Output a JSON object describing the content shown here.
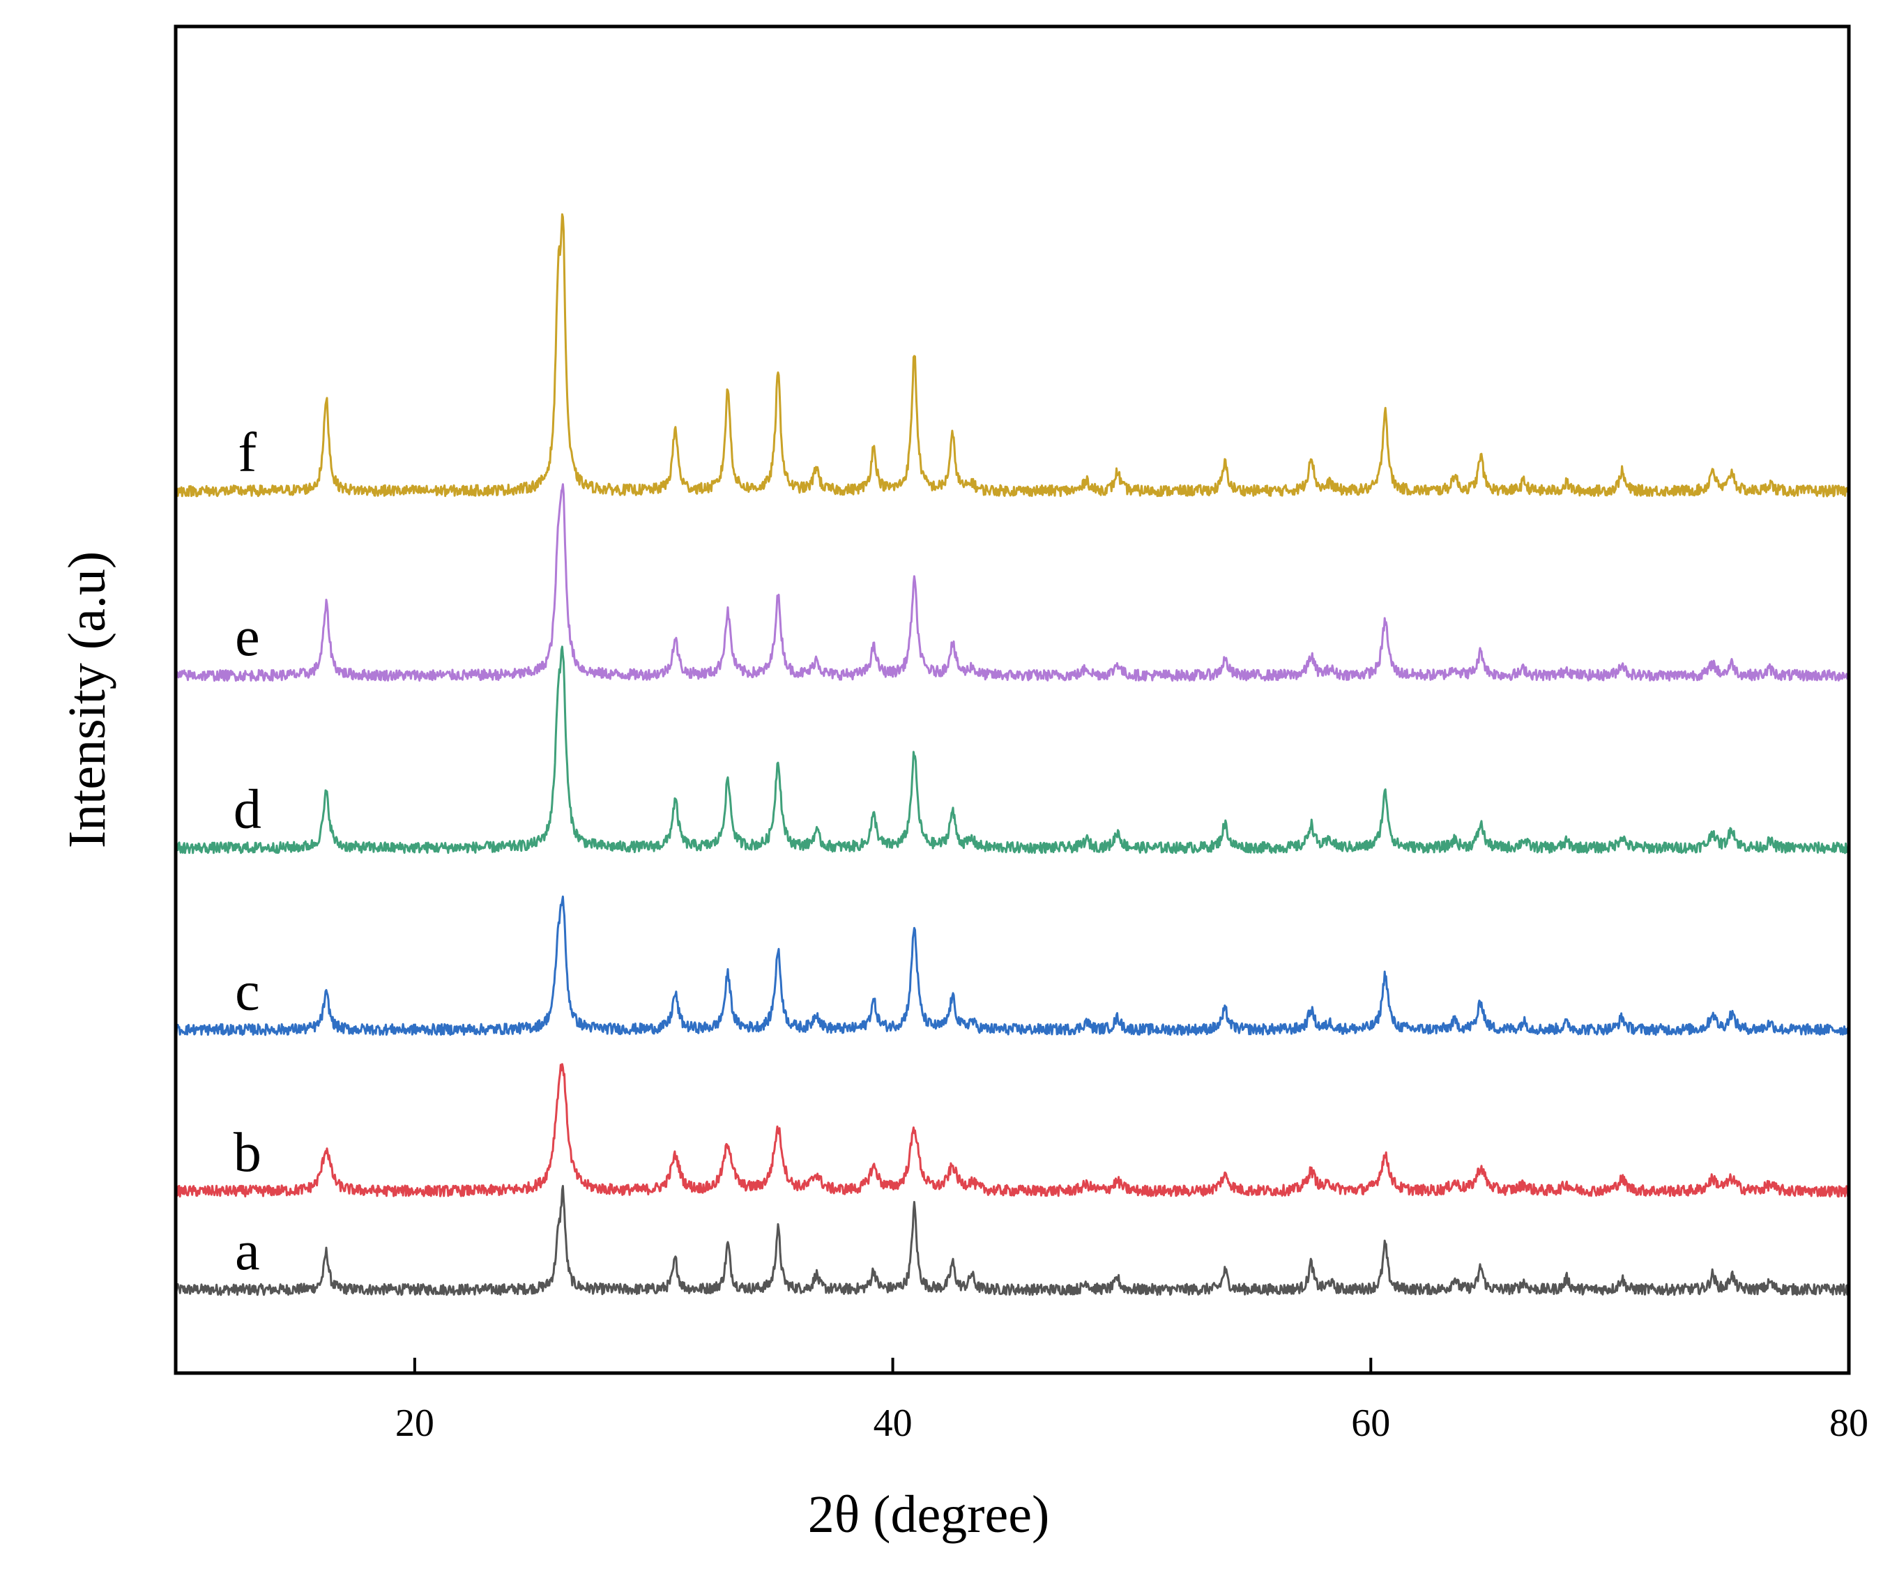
{
  "chart_data": {
    "type": "line",
    "title": "",
    "xlabel": "2θ (degree)",
    "ylabel": "Intensity (a.u)",
    "xlim": [
      10,
      80
    ],
    "ylim": [
      0,
      1
    ],
    "xticks": [
      20,
      40,
      60,
      80
    ],
    "yticks_shown": false,
    "grid": false,
    "legend": "none (inline labels a–f at left of each trace)",
    "peak_positions": [
      16.3,
      26.0,
      26.2,
      30.9,
      33.1,
      35.2,
      36.8,
      39.2,
      40.9,
      42.5,
      43.3,
      48.1,
      49.4,
      53.9,
      57.5,
      58.3,
      60.6,
      63.5,
      64.6,
      66.4,
      68.2,
      70.5,
      74.3,
      75.1,
      76.7
    ],
    "series": [
      {
        "name": "a",
        "label": "a",
        "color": "#555555",
        "baseline": 0.062,
        "scale": 0.56,
        "width": 0.12,
        "noise": 0.004,
        "peaks": [
          {
            "x": 16.3,
            "h": 0.05
          },
          {
            "x": 26.0,
            "h": 0.05
          },
          {
            "x": 26.2,
            "h": 0.12
          },
          {
            "x": 30.9,
            "h": 0.04
          },
          {
            "x": 33.1,
            "h": 0.06
          },
          {
            "x": 35.2,
            "h": 0.08
          },
          {
            "x": 36.8,
            "h": 0.02
          },
          {
            "x": 39.2,
            "h": 0.025
          },
          {
            "x": 40.9,
            "h": 0.11
          },
          {
            "x": 42.5,
            "h": 0.035
          },
          {
            "x": 43.3,
            "h": 0.02
          },
          {
            "x": 48.1,
            "h": 0.01
          },
          {
            "x": 49.4,
            "h": 0.015
          },
          {
            "x": 53.9,
            "h": 0.025
          },
          {
            "x": 57.5,
            "h": 0.035
          },
          {
            "x": 58.3,
            "h": 0.01
          },
          {
            "x": 60.6,
            "h": 0.06
          },
          {
            "x": 63.5,
            "h": 0.015
          },
          {
            "x": 64.6,
            "h": 0.03
          },
          {
            "x": 66.4,
            "h": 0.01
          },
          {
            "x": 68.2,
            "h": 0.015
          },
          {
            "x": 70.5,
            "h": 0.015
          },
          {
            "x": 74.3,
            "h": 0.02
          },
          {
            "x": 75.1,
            "h": 0.02
          },
          {
            "x": 76.7,
            "h": 0.01
          }
        ]
      },
      {
        "name": "b",
        "label": "b",
        "color": "#e0444d",
        "baseline": 0.135,
        "scale": 0.57,
        "width": 0.22,
        "noise": 0.004,
        "peaks": [
          {
            "x": 16.3,
            "h": 0.055
          },
          {
            "x": 26.0,
            "h": 0.06
          },
          {
            "x": 26.2,
            "h": 0.13
          },
          {
            "x": 30.9,
            "h": 0.045
          },
          {
            "x": 33.1,
            "h": 0.06
          },
          {
            "x": 35.2,
            "h": 0.08
          },
          {
            "x": 36.8,
            "h": 0.02
          },
          {
            "x": 39.2,
            "h": 0.03
          },
          {
            "x": 40.9,
            "h": 0.08
          },
          {
            "x": 42.5,
            "h": 0.03
          },
          {
            "x": 43.3,
            "h": 0.01
          },
          {
            "x": 48.1,
            "h": 0.008
          },
          {
            "x": 49.4,
            "h": 0.012
          },
          {
            "x": 53.9,
            "h": 0.02
          },
          {
            "x": 57.5,
            "h": 0.025
          },
          {
            "x": 58.3,
            "h": 0.008
          },
          {
            "x": 60.6,
            "h": 0.045
          },
          {
            "x": 63.5,
            "h": 0.01
          },
          {
            "x": 64.6,
            "h": 0.03
          },
          {
            "x": 66.4,
            "h": 0.008
          },
          {
            "x": 68.2,
            "h": 0.008
          },
          {
            "x": 70.5,
            "h": 0.015
          },
          {
            "x": 74.3,
            "h": 0.015
          },
          {
            "x": 75.1,
            "h": 0.015
          },
          {
            "x": 76.7,
            "h": 0.008
          }
        ]
      },
      {
        "name": "c",
        "label": "c",
        "color": "#2f6fc4",
        "baseline": 0.255,
        "scale": 0.58,
        "width": 0.15,
        "noise": 0.004,
        "peaks": [
          {
            "x": 16.3,
            "h": 0.045
          },
          {
            "x": 26.0,
            "h": 0.08
          },
          {
            "x": 26.2,
            "h": 0.14
          },
          {
            "x": 30.9,
            "h": 0.045
          },
          {
            "x": 33.1,
            "h": 0.07
          },
          {
            "x": 35.2,
            "h": 0.1
          },
          {
            "x": 36.8,
            "h": 0.02
          },
          {
            "x": 39.2,
            "h": 0.035
          },
          {
            "x": 40.9,
            "h": 0.13
          },
          {
            "x": 42.5,
            "h": 0.04
          },
          {
            "x": 43.3,
            "h": 0.01
          },
          {
            "x": 48.1,
            "h": 0.01
          },
          {
            "x": 49.4,
            "h": 0.015
          },
          {
            "x": 53.9,
            "h": 0.025
          },
          {
            "x": 57.5,
            "h": 0.025
          },
          {
            "x": 58.3,
            "h": 0.008
          },
          {
            "x": 60.6,
            "h": 0.07
          },
          {
            "x": 63.5,
            "h": 0.01
          },
          {
            "x": 64.6,
            "h": 0.035
          },
          {
            "x": 66.4,
            "h": 0.01
          },
          {
            "x": 68.2,
            "h": 0.008
          },
          {
            "x": 70.5,
            "h": 0.015
          },
          {
            "x": 74.3,
            "h": 0.02
          },
          {
            "x": 75.1,
            "h": 0.02
          },
          {
            "x": 76.7,
            "h": 0.008
          }
        ]
      },
      {
        "name": "d",
        "label": "d",
        "color": "#3fa07a",
        "baseline": 0.39,
        "scale": 0.58,
        "width": 0.15,
        "noise": 0.004,
        "peaks": [
          {
            "x": 16.3,
            "h": 0.07
          },
          {
            "x": 26.0,
            "h": 0.14
          },
          {
            "x": 26.2,
            "h": 0.2
          },
          {
            "x": 30.9,
            "h": 0.06
          },
          {
            "x": 33.1,
            "h": 0.085
          },
          {
            "x": 35.2,
            "h": 0.11
          },
          {
            "x": 36.8,
            "h": 0.02
          },
          {
            "x": 39.2,
            "h": 0.04
          },
          {
            "x": 40.9,
            "h": 0.12
          },
          {
            "x": 42.5,
            "h": 0.045
          },
          {
            "x": 43.3,
            "h": 0.01
          },
          {
            "x": 48.1,
            "h": 0.01
          },
          {
            "x": 49.4,
            "h": 0.02
          },
          {
            "x": 53.9,
            "h": 0.03
          },
          {
            "x": 57.5,
            "h": 0.03
          },
          {
            "x": 58.3,
            "h": 0.01
          },
          {
            "x": 60.6,
            "h": 0.07
          },
          {
            "x": 63.5,
            "h": 0.01
          },
          {
            "x": 64.6,
            "h": 0.03
          },
          {
            "x": 66.4,
            "h": 0.01
          },
          {
            "x": 68.2,
            "h": 0.008
          },
          {
            "x": 70.5,
            "h": 0.015
          },
          {
            "x": 74.3,
            "h": 0.02
          },
          {
            "x": 75.1,
            "h": 0.025
          },
          {
            "x": 76.7,
            "h": 0.008
          }
        ]
      },
      {
        "name": "e",
        "label": "e",
        "color": "#b07ad6",
        "baseline": 0.518,
        "scale": 0.58,
        "width": 0.15,
        "noise": 0.004,
        "peaks": [
          {
            "x": 16.3,
            "h": 0.09
          },
          {
            "x": 26.0,
            "h": 0.12
          },
          {
            "x": 26.2,
            "h": 0.2
          },
          {
            "x": 30.9,
            "h": 0.045
          },
          {
            "x": 33.1,
            "h": 0.08
          },
          {
            "x": 35.2,
            "h": 0.1
          },
          {
            "x": 36.8,
            "h": 0.02
          },
          {
            "x": 39.2,
            "h": 0.035
          },
          {
            "x": 40.9,
            "h": 0.12
          },
          {
            "x": 42.5,
            "h": 0.04
          },
          {
            "x": 43.3,
            "h": 0.01
          },
          {
            "x": 48.1,
            "h": 0.01
          },
          {
            "x": 49.4,
            "h": 0.015
          },
          {
            "x": 53.9,
            "h": 0.02
          },
          {
            "x": 57.5,
            "h": 0.025
          },
          {
            "x": 58.3,
            "h": 0.008
          },
          {
            "x": 60.6,
            "h": 0.07
          },
          {
            "x": 63.5,
            "h": 0.01
          },
          {
            "x": 64.6,
            "h": 0.03
          },
          {
            "x": 66.4,
            "h": 0.008
          },
          {
            "x": 68.2,
            "h": 0.008
          },
          {
            "x": 70.5,
            "h": 0.015
          },
          {
            "x": 74.3,
            "h": 0.015
          },
          {
            "x": 75.1,
            "h": 0.015
          },
          {
            "x": 76.7,
            "h": 0.008
          }
        ]
      },
      {
        "name": "f",
        "label": "f",
        "color": "#c9a227",
        "baseline": 0.655,
        "scale": 0.58,
        "width": 0.13,
        "noise": 0.004,
        "peaks": [
          {
            "x": 16.3,
            "h": 0.12
          },
          {
            "x": 26.0,
            "h": 0.21
          },
          {
            "x": 26.2,
            "h": 0.29
          },
          {
            "x": 30.9,
            "h": 0.08
          },
          {
            "x": 33.1,
            "h": 0.13
          },
          {
            "x": 35.2,
            "h": 0.15
          },
          {
            "x": 36.8,
            "h": 0.03
          },
          {
            "x": 39.2,
            "h": 0.055
          },
          {
            "x": 40.9,
            "h": 0.175
          },
          {
            "x": 42.5,
            "h": 0.07
          },
          {
            "x": 43.3,
            "h": 0.01
          },
          {
            "x": 48.1,
            "h": 0.015
          },
          {
            "x": 49.4,
            "h": 0.025
          },
          {
            "x": 53.9,
            "h": 0.035
          },
          {
            "x": 57.5,
            "h": 0.045
          },
          {
            "x": 58.3,
            "h": 0.01
          },
          {
            "x": 60.6,
            "h": 0.105
          },
          {
            "x": 63.5,
            "h": 0.02
          },
          {
            "x": 64.6,
            "h": 0.045
          },
          {
            "x": 66.4,
            "h": 0.012
          },
          {
            "x": 68.2,
            "h": 0.01
          },
          {
            "x": 70.5,
            "h": 0.025
          },
          {
            "x": 74.3,
            "h": 0.028
          },
          {
            "x": 75.1,
            "h": 0.025
          },
          {
            "x": 76.7,
            "h": 0.01
          }
        ]
      }
    ]
  }
}
